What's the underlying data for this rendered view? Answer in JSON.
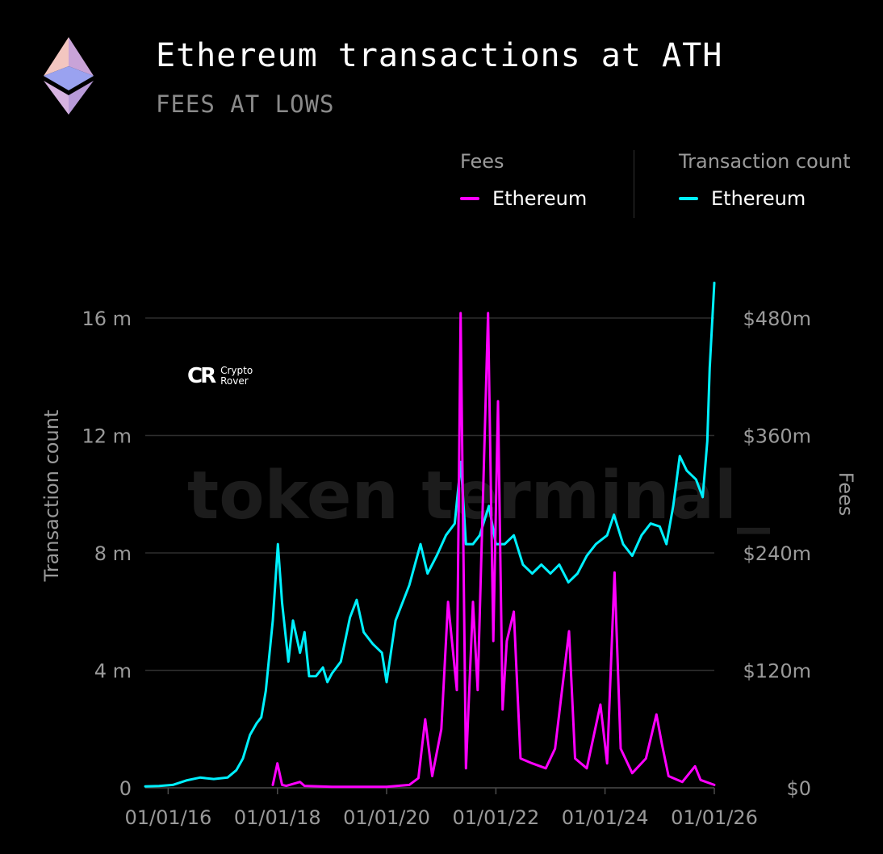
{
  "header": {
    "title": "Ethereum transactions at ATH",
    "subtitle": "FEES AT LOWS",
    "logo_icon": "ethereum-diamond-icon"
  },
  "legend": {
    "fees": {
      "title": "Fees",
      "item": "Ethereum",
      "color": "#ff00ff"
    },
    "transactions": {
      "title": "Transaction count",
      "item": "Ethereum",
      "color": "#00f0ff"
    }
  },
  "brand": {
    "mark": "CR",
    "line1": "Crypto",
    "line2": "Rover"
  },
  "watermark": "token terminal_",
  "chart_data": {
    "type": "line",
    "title": "Ethereum transactions at ATH",
    "subtitle": "FEES AT LOWS",
    "x_ticks": [
      "01/01/16",
      "01/01/18",
      "01/01/20",
      "01/01/22",
      "01/01/24",
      "01/01/26"
    ],
    "x_range": [
      "2015-08-01",
      "2026-01-01"
    ],
    "y_left": {
      "label": "Transaction count",
      "range": [
        0,
        16000000
      ],
      "ticks": [
        "0",
        "4 m",
        "8 m",
        "12 m",
        "16 m"
      ]
    },
    "y_right": {
      "label": "Fees",
      "range": [
        0,
        480000000
      ],
      "ticks": [
        "$0",
        "$120m",
        "$240m",
        "$360m",
        "$480m"
      ]
    },
    "grid": true,
    "legend_position": "top-right",
    "series": [
      {
        "name": "Ethereum",
        "group": "Transaction count",
        "axis": "left",
        "color": "#00f0ff",
        "points": [
          [
            "2015-08-01",
            0.05
          ],
          [
            "2015-11-01",
            0.06
          ],
          [
            "2016-02-01",
            0.1
          ],
          [
            "2016-05-01",
            0.25
          ],
          [
            "2016-08-01",
            0.35
          ],
          [
            "2016-11-01",
            0.3
          ],
          [
            "2017-02-01",
            0.35
          ],
          [
            "2017-04-01",
            0.6
          ],
          [
            "2017-05-15",
            1.0
          ],
          [
            "2017-07-01",
            1.8
          ],
          [
            "2017-08-15",
            2.2
          ],
          [
            "2017-09-15",
            2.4
          ],
          [
            "2017-10-15",
            3.3
          ],
          [
            "2017-12-01",
            5.7
          ],
          [
            "2018-01-04",
            8.3
          ],
          [
            "2018-02-01",
            6.3
          ],
          [
            "2018-03-15",
            4.3
          ],
          [
            "2018-04-15",
            5.7
          ],
          [
            "2018-06-01",
            4.6
          ],
          [
            "2018-07-01",
            5.3
          ],
          [
            "2018-08-01",
            3.8
          ],
          [
            "2018-09-15",
            3.8
          ],
          [
            "2018-11-01",
            4.1
          ],
          [
            "2018-12-01",
            3.6
          ],
          [
            "2019-01-01",
            3.9
          ],
          [
            "2019-03-01",
            4.3
          ],
          [
            "2019-05-01",
            5.8
          ],
          [
            "2019-06-15",
            6.4
          ],
          [
            "2019-08-01",
            5.3
          ],
          [
            "2019-10-01",
            4.9
          ],
          [
            "2019-12-01",
            4.6
          ],
          [
            "2020-01-01",
            3.6
          ],
          [
            "2020-03-01",
            5.7
          ],
          [
            "2020-06-01",
            6.9
          ],
          [
            "2020-08-15",
            8.3
          ],
          [
            "2020-10-01",
            7.3
          ],
          [
            "2020-12-01",
            7.9
          ],
          [
            "2021-02-01",
            8.6
          ],
          [
            "2021-04-01",
            9.0
          ],
          [
            "2021-05-12",
            11.1
          ],
          [
            "2021-06-15",
            8.3
          ],
          [
            "2021-08-01",
            8.3
          ],
          [
            "2021-09-15",
            8.6
          ],
          [
            "2021-11-15",
            9.6
          ],
          [
            "2022-01-01",
            8.3
          ],
          [
            "2022-03-01",
            8.3
          ],
          [
            "2022-05-01",
            8.6
          ],
          [
            "2022-07-01",
            7.6
          ],
          [
            "2022-09-01",
            7.3
          ],
          [
            "2022-11-01",
            7.6
          ],
          [
            "2023-01-01",
            7.3
          ],
          [
            "2023-03-01",
            7.6
          ],
          [
            "2023-05-01",
            7.0
          ],
          [
            "2023-07-01",
            7.3
          ],
          [
            "2023-09-01",
            7.9
          ],
          [
            "2023-11-01",
            8.3
          ],
          [
            "2024-01-15",
            8.6
          ],
          [
            "2024-03-01",
            9.3
          ],
          [
            "2024-05-01",
            8.3
          ],
          [
            "2024-07-01",
            7.9
          ],
          [
            "2024-09-01",
            8.6
          ],
          [
            "2024-11-01",
            9.0
          ],
          [
            "2025-01-01",
            8.9
          ],
          [
            "2025-02-15",
            8.3
          ],
          [
            "2025-04-01",
            9.6
          ],
          [
            "2025-05-15",
            11.3
          ],
          [
            "2025-07-01",
            10.8
          ],
          [
            "2025-09-01",
            10.5
          ],
          [
            "2025-10-15",
            9.9
          ],
          [
            "2025-11-15",
            11.8
          ],
          [
            "2025-12-01",
            14.3
          ],
          [
            "2026-01-01",
            17.2
          ]
        ]
      },
      {
        "name": "Ethereum",
        "group": "Fees",
        "axis": "right",
        "color": "#ff00ff",
        "points": [
          [
            "2017-12-01",
            3
          ],
          [
            "2018-01-01",
            25
          ],
          [
            "2018-02-01",
            3
          ],
          [
            "2018-03-01",
            2
          ],
          [
            "2018-06-01",
            6
          ],
          [
            "2018-07-01",
            2
          ],
          [
            "2019-01-01",
            1
          ],
          [
            "2020-01-01",
            1
          ],
          [
            "2020-06-01",
            3
          ],
          [
            "2020-08-01",
            10
          ],
          [
            "2020-09-15",
            70
          ],
          [
            "2020-11-01",
            12
          ],
          [
            "2021-01-01",
            60
          ],
          [
            "2021-02-15",
            190
          ],
          [
            "2021-04-15",
            100
          ],
          [
            "2021-05-10",
            485
          ],
          [
            "2021-06-15",
            20
          ],
          [
            "2021-08-01",
            190
          ],
          [
            "2021-09-01",
            100
          ],
          [
            "2021-11-10",
            485
          ],
          [
            "2021-12-15",
            150
          ],
          [
            "2022-01-15",
            395
          ],
          [
            "2022-02-15",
            80
          ],
          [
            "2022-03-15",
            150
          ],
          [
            "2022-05-01",
            180
          ],
          [
            "2022-06-15",
            30
          ],
          [
            "2022-09-01",
            25
          ],
          [
            "2022-12-01",
            20
          ],
          [
            "2023-02-01",
            40
          ],
          [
            "2023-05-05",
            160
          ],
          [
            "2023-06-15",
            30
          ],
          [
            "2023-09-01",
            20
          ],
          [
            "2023-12-01",
            85
          ],
          [
            "2024-01-15",
            25
          ],
          [
            "2024-03-05",
            220
          ],
          [
            "2024-04-15",
            40
          ],
          [
            "2024-07-01",
            15
          ],
          [
            "2024-10-01",
            30
          ],
          [
            "2024-12-10",
            75
          ],
          [
            "2025-01-15",
            45
          ],
          [
            "2025-03-01",
            12
          ],
          [
            "2025-06-01",
            6
          ],
          [
            "2025-08-25",
            22
          ],
          [
            "2025-10-01",
            8
          ],
          [
            "2026-01-01",
            3
          ]
        ]
      }
    ]
  }
}
